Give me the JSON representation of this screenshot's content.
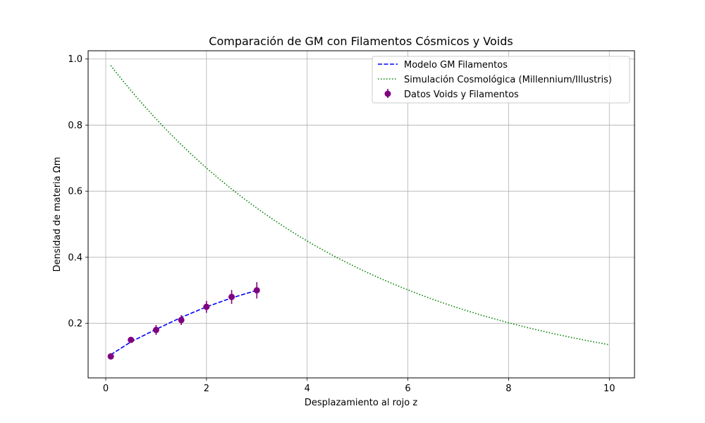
{
  "chart_data": {
    "type": "line",
    "title": "Comparación de GM con Filamentos Cósmicos y Voids",
    "xlabel": "Desplazamiento al rojo z",
    "ylabel": "Densidad de materia Ωm",
    "xlim": [
      -0.35,
      10.5
    ],
    "ylim": [
      0.035,
      1.025
    ],
    "xticks": [
      0,
      2,
      4,
      6,
      8,
      10
    ],
    "yticks": [
      0.2,
      0.4,
      0.6,
      0.8,
      1.0
    ],
    "xtick_labels": [
      "0",
      "2",
      "4",
      "6",
      "8",
      "10"
    ],
    "ytick_labels": [
      "0.2",
      "0.4",
      "0.6",
      "0.8",
      "1.0"
    ],
    "grid": true,
    "legend_position": "top-right",
    "series": [
      {
        "name": "Modelo GM Filamentos",
        "kind": "line",
        "style": "dashed",
        "color": "#0000ff",
        "x": [
          0.1,
          0.5,
          1.0,
          1.5,
          2.0,
          2.5,
          3.0
        ],
        "y": [
          0.105,
          0.144,
          0.182,
          0.218,
          0.25,
          0.277,
          0.3
        ]
      },
      {
        "name": "Simulación Cosmológica (Millennium/Illustris)",
        "kind": "curve",
        "style": "dotted",
        "color": "#008000",
        "x_start": 0.1,
        "x_end": 10,
        "y_function": "exp(-0.2*z)"
      },
      {
        "name": "Datos Voids y Filamentos",
        "kind": "errorbar",
        "color": "#800080",
        "x": [
          0.1,
          0.5,
          1.0,
          1.5,
          2.0,
          2.5,
          3.0
        ],
        "y": [
          0.1,
          0.15,
          0.18,
          0.21,
          0.25,
          0.28,
          0.3
        ],
        "yerr": [
          0.005,
          0.0075,
          0.015,
          0.015,
          0.018,
          0.021,
          0.025
        ]
      }
    ]
  }
}
